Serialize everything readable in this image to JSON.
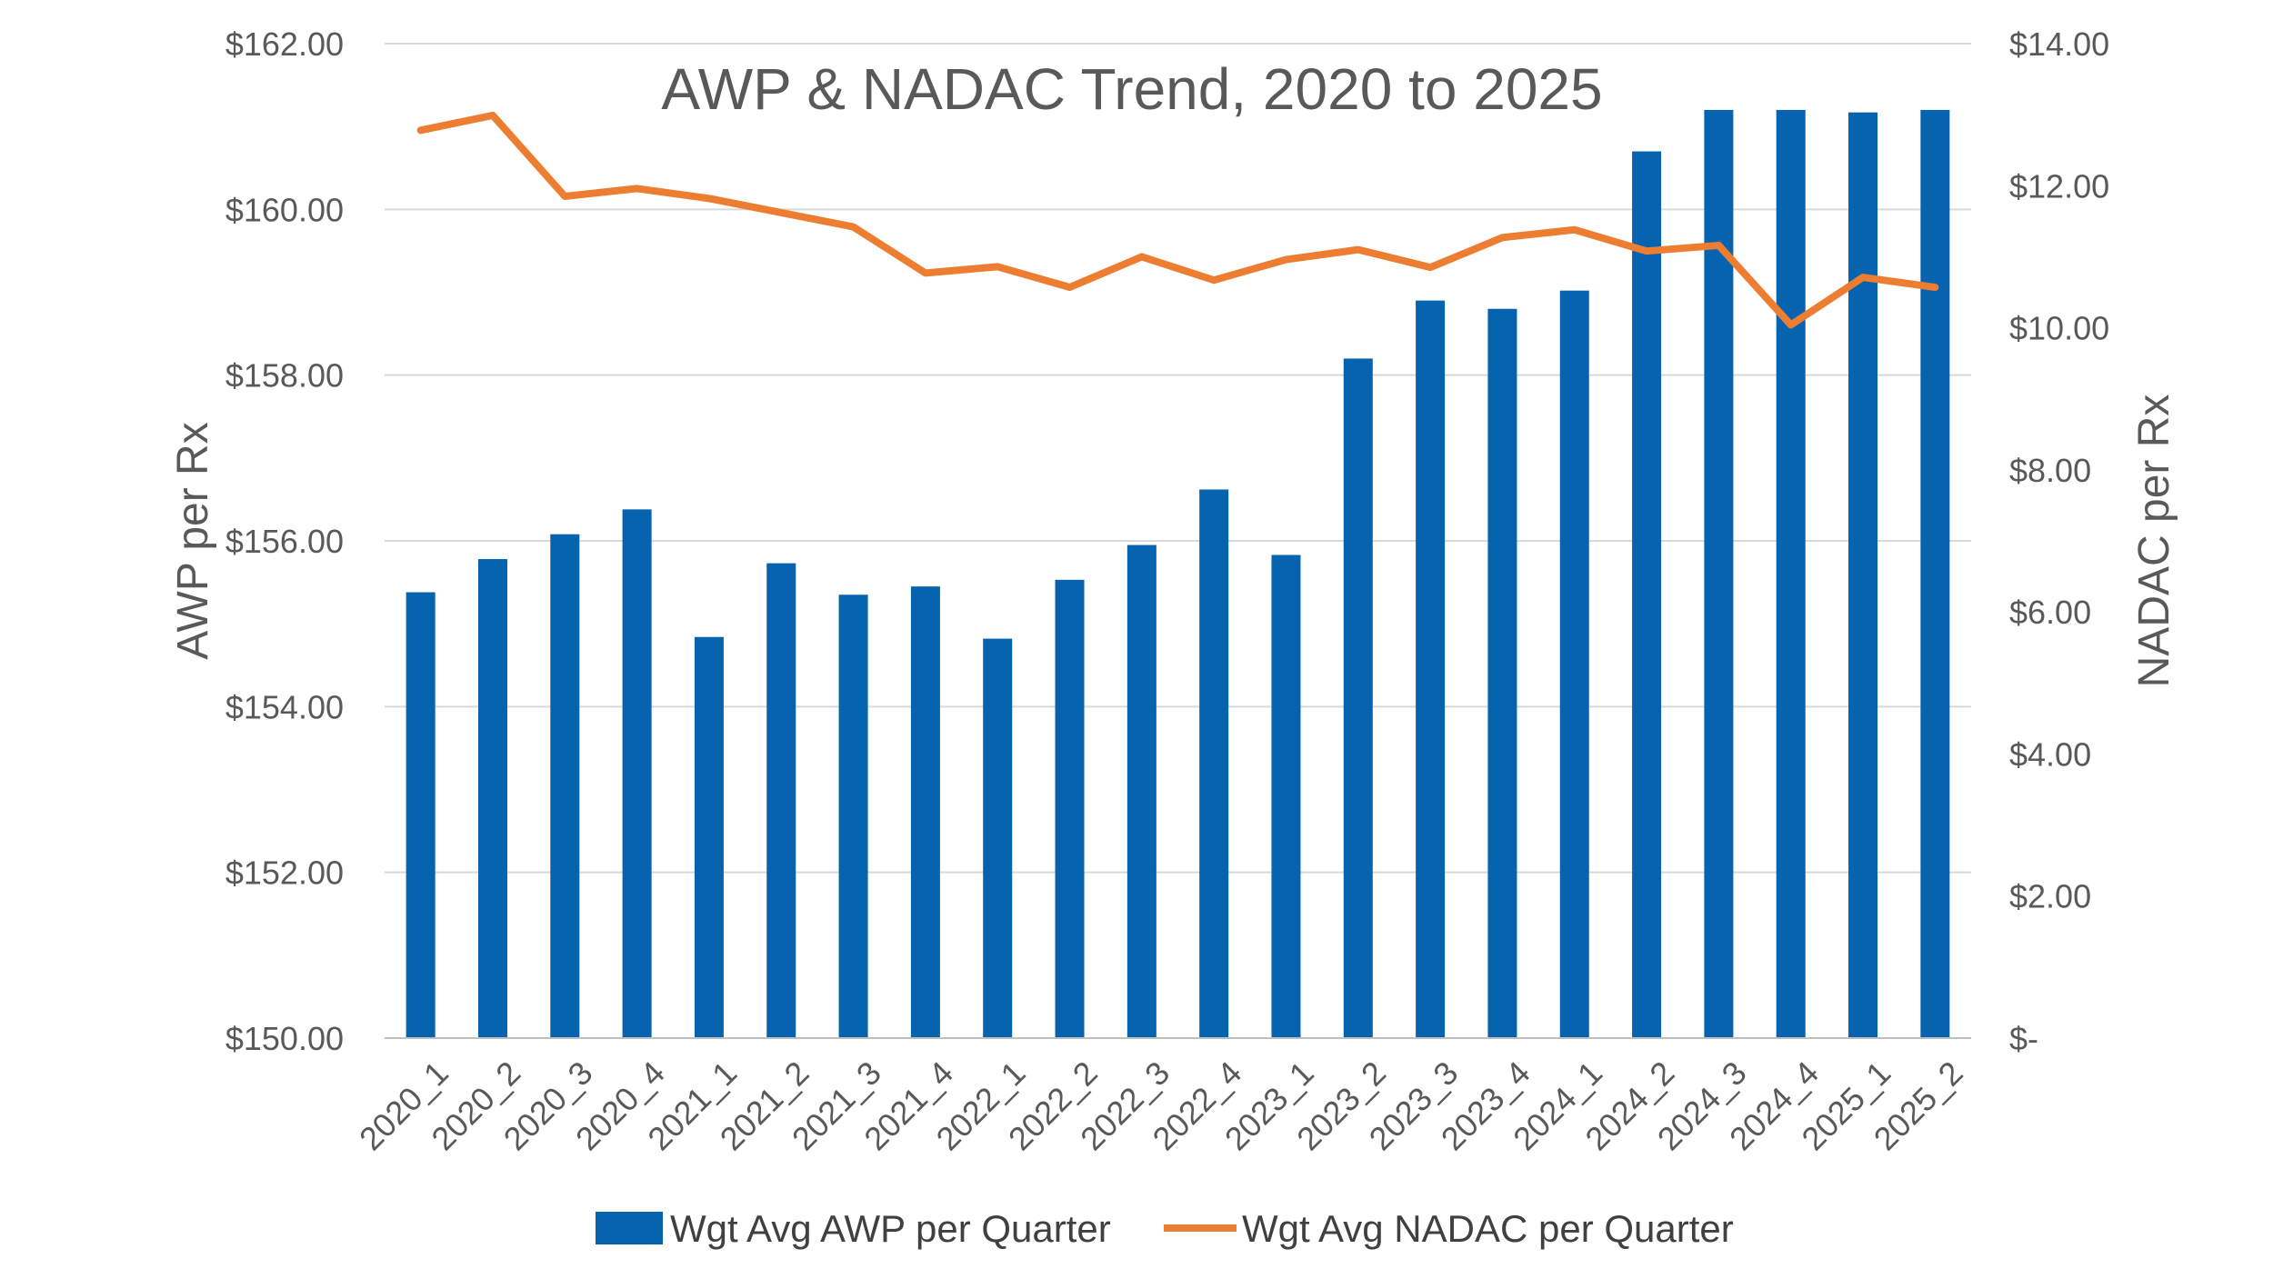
{
  "chart_data": {
    "type": "bar",
    "title": "AWP & NADAC Trend, 2020 to 2025",
    "categories": [
      "2020_1",
      "2020_2",
      "2020_3",
      "2020_4",
      "2021_1",
      "2021_2",
      "2021_3",
      "2021_4",
      "2022_1",
      "2022_2",
      "2022_3",
      "2022_4",
      "2023_1",
      "2023_2",
      "2023_3",
      "2023_4",
      "2024_1",
      "2024_2",
      "2024_3",
      "2024_4",
      "2025_1",
      "2025_2"
    ],
    "series": [
      {
        "name": "Wgt Avg AWP per Quarter",
        "type": "bar",
        "axis": "left",
        "color": "#0563b0",
        "values": [
          155.38,
          155.78,
          156.08,
          156.38,
          154.84,
          155.73,
          155.35,
          155.45,
          154.82,
          155.53,
          155.95,
          156.62,
          155.83,
          158.2,
          158.9,
          158.8,
          159.02,
          160.7,
          161.2,
          161.2,
          161.17,
          161.2
        ]
      },
      {
        "name": "Wgt Avg NADAC per Quarter",
        "type": "line",
        "axis": "right",
        "color": "#ed7d31",
        "values": [
          12.78,
          12.99,
          11.85,
          11.96,
          11.82,
          11.62,
          11.42,
          10.77,
          10.86,
          10.57,
          11.0,
          10.67,
          10.96,
          11.1,
          10.85,
          11.27,
          11.38,
          11.08,
          11.16,
          10.04,
          10.71,
          10.57
        ]
      }
    ],
    "ylabel": "AWP per Rx",
    "y2label": "NADAC per Rx",
    "ylim": [
      150,
      162
    ],
    "y2lim": [
      0,
      14
    ],
    "yticks": [
      150,
      152,
      154,
      156,
      158,
      160,
      162
    ],
    "y2ticks": [
      0,
      2,
      4,
      6,
      8,
      10,
      12,
      14
    ],
    "ytick_labels": [
      "$150.00",
      "$152.00",
      "$154.00",
      "$156.00",
      "$158.00",
      "$160.00",
      "$162.00"
    ],
    "y2tick_labels": [
      "$-",
      "$2.00",
      "$4.00",
      "$6.00",
      "$8.00",
      "$10.00",
      "$12.00",
      "$14.00"
    ],
    "grid": true,
    "legend": "bottom"
  }
}
